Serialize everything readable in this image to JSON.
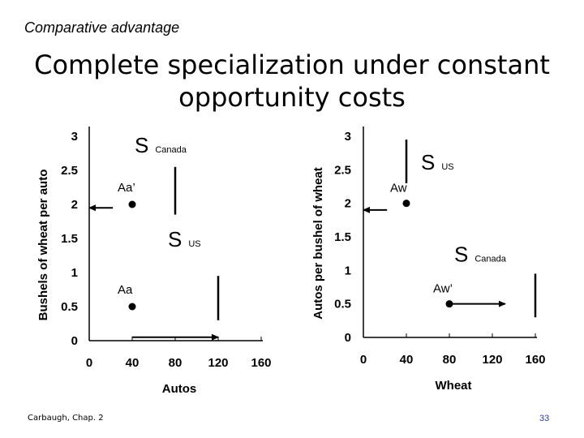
{
  "slide": {
    "header": "Comparative advantage",
    "title_line1": "Complete specialization under constant",
    "title_line2": "opportunity costs",
    "footer": "Carbaugh, Chap. 2",
    "page_number": "33"
  },
  "chart_data": [
    {
      "type": "scatter",
      "ylabel": "Bushels of wheat per auto",
      "xlabel": "Autos",
      "x_ticks": [
        "0",
        "40",
        "80",
        "120",
        "160"
      ],
      "y_ticks": [
        "0",
        "0.5",
        "1",
        "1.5",
        "2",
        "2.5",
        "3"
      ],
      "xlim": [
        0,
        160
      ],
      "ylim": [
        0,
        3
      ],
      "points": [
        {
          "label": "Aa",
          "x": 40,
          "y": 0.5
        },
        {
          "label": "Aa’",
          "x": 40,
          "y": 2
        }
      ],
      "supply_curves": [
        {
          "label": "S",
          "sub": "Canada",
          "x": 80,
          "y_from": 1.85,
          "y_to": 2.55
        },
        {
          "label": "S",
          "sub": "US",
          "x": 120,
          "y_from": 0.3,
          "y_to": 0.95
        }
      ],
      "arrows": [
        {
          "from_x": 40,
          "from_y": 0.05,
          "to_x": 120,
          "to_y": 0.05
        },
        {
          "from_x": 22,
          "from_y": 1.95,
          "to_x": 0,
          "to_y": 1.95
        }
      ]
    },
    {
      "type": "scatter",
      "ylabel": "Autos per bushel of wheat",
      "xlabel": "Wheat",
      "x_ticks": [
        "0",
        "40",
        "80",
        "120",
        "160"
      ],
      "y_ticks": [
        "0",
        "0.5",
        "1",
        "1.5",
        "2",
        "2.5",
        "3"
      ],
      "xlim": [
        0,
        160
      ],
      "ylim": [
        0,
        3
      ],
      "points": [
        {
          "label": "Aw",
          "x": 40,
          "y": 2
        },
        {
          "label": "Aw’",
          "x": 80,
          "y": 0.5
        }
      ],
      "supply_curves": [
        {
          "label": "S",
          "sub": "US",
          "x": 40,
          "y_from": 2.3,
          "y_to": 2.95
        },
        {
          "label": "S",
          "sub": "Canada",
          "x": 160,
          "y_from": 0.3,
          "y_to": 0.95
        }
      ],
      "arrows": [
        {
          "from_x": 80,
          "from_y": 0.5,
          "to_x": 132,
          "to_y": 0.5
        },
        {
          "from_x": 22,
          "from_y": 1.9,
          "to_x": 0,
          "to_y": 1.9
        }
      ]
    }
  ]
}
